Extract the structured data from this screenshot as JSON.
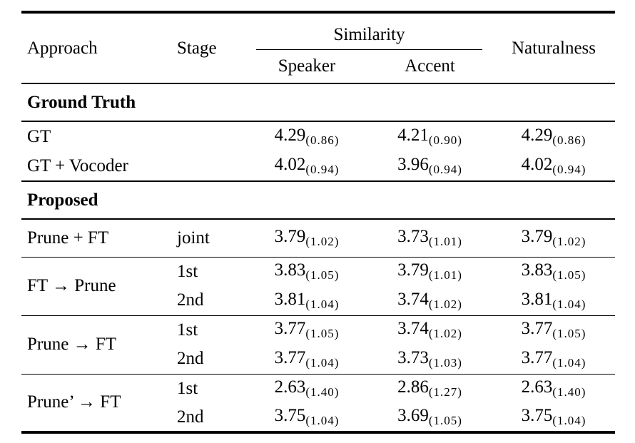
{
  "header": {
    "approach": "Approach",
    "stage": "Stage",
    "similarity": "Similarity",
    "speaker": "Speaker",
    "accent": "Accent",
    "naturalness": "Naturalness"
  },
  "sections": {
    "ground_truth": {
      "title": "Ground Truth",
      "rows": [
        {
          "approach": "GT",
          "stage": "",
          "speaker": {
            "v": "4.29",
            "s": "(0.86)"
          },
          "accent": {
            "v": "4.21",
            "s": "(0.90)"
          },
          "naturalness": {
            "v": "4.29",
            "s": "(0.86)"
          }
        },
        {
          "approach": "GT + Vocoder",
          "stage": "",
          "speaker": {
            "v": "4.02",
            "s": "(0.94)"
          },
          "accent": {
            "v": "3.96",
            "s": "(0.94)"
          },
          "naturalness": {
            "v": "4.02",
            "s": "(0.94)"
          }
        }
      ]
    },
    "proposed": {
      "title": "Proposed",
      "groups": [
        {
          "approach": "Prune + FT",
          "rows": [
            {
              "stage": "joint",
              "speaker": {
                "v": "3.79",
                "s": "(1.02)"
              },
              "accent": {
                "v": "3.73",
                "s": "(1.01)"
              },
              "naturalness": {
                "v": "3.79",
                "s": "(1.02)"
              }
            }
          ]
        },
        {
          "approach": "FT → Prune",
          "rows": [
            {
              "stage": "1st",
              "speaker": {
                "v": "3.83",
                "s": "(1.05)"
              },
              "accent": {
                "v": "3.79",
                "s": "(1.01)"
              },
              "naturalness": {
                "v": "3.83",
                "s": "(1.05)"
              }
            },
            {
              "stage": "2nd",
              "speaker": {
                "v": "3.81",
                "s": "(1.04)"
              },
              "accent": {
                "v": "3.74",
                "s": "(1.02)"
              },
              "naturalness": {
                "v": "3.81",
                "s": "(1.04)"
              }
            }
          ]
        },
        {
          "approach": "Prune → FT",
          "rows": [
            {
              "stage": "1st",
              "speaker": {
                "v": "3.77",
                "s": "(1.05)"
              },
              "accent": {
                "v": "3.74",
                "s": "(1.02)"
              },
              "naturalness": {
                "v": "3.77",
                "s": "(1.05)"
              }
            },
            {
              "stage": "2nd",
              "speaker": {
                "v": "3.77",
                "s": "(1.04)"
              },
              "accent": {
                "v": "3.73",
                "s": "(1.03)"
              },
              "naturalness": {
                "v": "3.77",
                "s": "(1.04)"
              }
            }
          ]
        },
        {
          "approach": "Prune’ → FT",
          "rows": [
            {
              "stage": "1st",
              "speaker": {
                "v": "2.63",
                "s": "(1.40)"
              },
              "accent": {
                "v": "2.86",
                "s": "(1.27)"
              },
              "naturalness": {
                "v": "2.63",
                "s": "(1.40)"
              }
            },
            {
              "stage": "2nd",
              "speaker": {
                "v": "3.75",
                "s": "(1.04)"
              },
              "accent": {
                "v": "3.69",
                "s": "(1.05)"
              },
              "naturalness": {
                "v": "3.75",
                "s": "(1.04)"
              }
            }
          ]
        }
      ]
    }
  }
}
